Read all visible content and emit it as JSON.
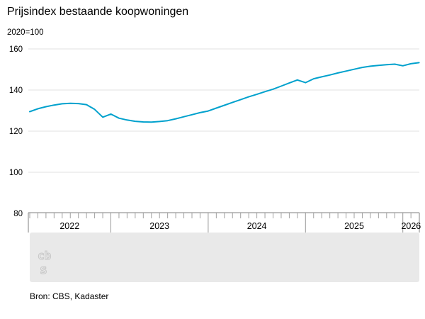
{
  "title": "Prijsindex bestaande koopwoningen",
  "subtitle": "2020=100",
  "source": "Bron: CBS, Kadaster",
  "logo": "cbs-logo",
  "colors": {
    "line": "#00a1cd",
    "grid": "#e0e0e0",
    "axis_frame": "#7f7f7f",
    "month_tick": "#a0a0a0",
    "year_line": "#9a9a9a",
    "text": "#000000",
    "panel": "#e9e9e9",
    "logo_stroke": "#c6c6c6"
  },
  "chart_data": {
    "type": "line",
    "title": "Prijsindex bestaande koopwoningen",
    "ylabel": "2020=100",
    "ylim": [
      80,
      160
    ],
    "yticks": [
      80,
      100,
      120,
      140,
      160
    ],
    "x_year_labels": [
      "2022",
      "2023",
      "2024",
      "2025",
      "2026"
    ],
    "grid": "horizontal",
    "legend": "none",
    "series": [
      {
        "name": "Prijsindex bestaande koopwoningen",
        "start": "2022-03",
        "freq": "monthly",
        "values": [
          129.5,
          130.9,
          131.9,
          132.7,
          133.3,
          133.5,
          133.4,
          132.9,
          130.6,
          126.8,
          128.3,
          126.3,
          125.4,
          124.8,
          124.5,
          124.4,
          124.7,
          125.1,
          126.0,
          127.0,
          128.0,
          129.0,
          129.8,
          131.2,
          132.6,
          134.0,
          135.3,
          136.7,
          137.9,
          139.2,
          140.4,
          141.9,
          143.4,
          144.9,
          143.6,
          145.5,
          146.4,
          147.3,
          148.3,
          149.2,
          150.1,
          151.0,
          151.6,
          152.0,
          152.3,
          152.6,
          151.8,
          152.8,
          153.3
        ]
      }
    ]
  }
}
